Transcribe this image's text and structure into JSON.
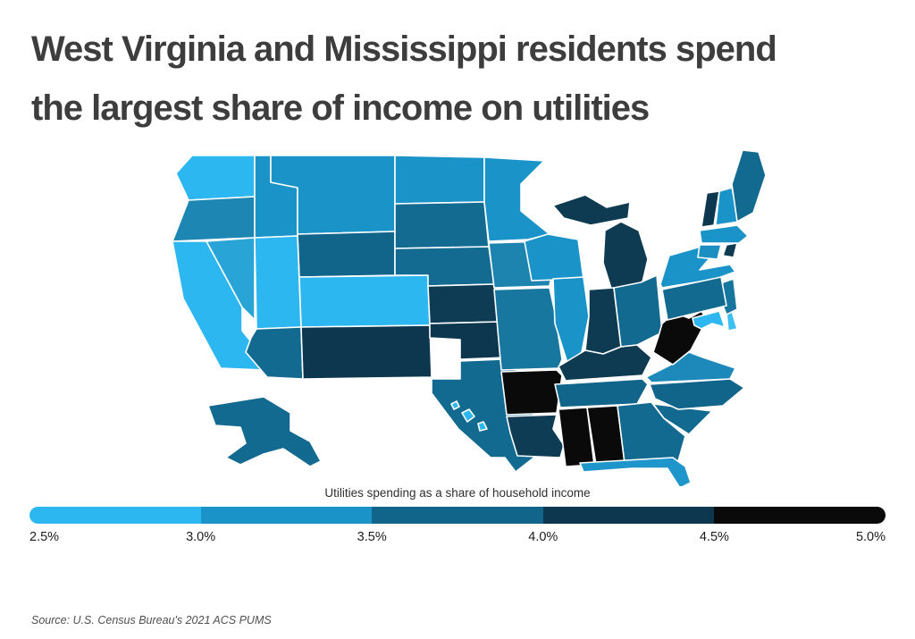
{
  "title": {
    "line1": "West Virginia and Mississippi residents spend",
    "line2": "the largest share of income on utilities"
  },
  "source": "Source:  U.S. Census Bureau's 2021 ACS PUMS",
  "chart_data": {
    "type": "choropleth_map",
    "title": "West Virginia and Mississippi residents spend the largest share of income on utilities",
    "legend_title": "Utilities spending as a share of household income",
    "unit": "percent of household income",
    "legend": {
      "position": "bottom",
      "tick_labels": [
        "2.5%",
        "3.0%",
        "3.5%",
        "4.0%",
        "4.5%",
        "5.0%"
      ],
      "segments": [
        {
          "range": "2.5–3.0%",
          "color": "#2db7f0"
        },
        {
          "range": "3.0–3.5%",
          "color": "#1a93c8"
        },
        {
          "range": "3.5–4.0%",
          "color": "#11648a"
        },
        {
          "range": "4.0–4.5%",
          "color": "#0d374e"
        },
        {
          "range": "4.5–5.0%",
          "color": "#0a0a0b"
        }
      ]
    },
    "map_border_color": "#ffffff",
    "states": [
      {
        "abbr": "WA",
        "name": "Washington",
        "range": "2.5–3.0%",
        "fill": "#2db7f0"
      },
      {
        "abbr": "OR",
        "name": "Oregon",
        "range": "3.0–3.5%",
        "fill": "#1e86b2"
      },
      {
        "abbr": "CA",
        "name": "California",
        "range": "2.5–3.0%",
        "fill": "#2db7f0"
      },
      {
        "abbr": "NV",
        "name": "Nevada",
        "range": "3.0–3.5%",
        "fill": "#28a4d7"
      },
      {
        "abbr": "ID",
        "name": "Idaho",
        "range": "3.0–3.5%",
        "fill": "#1a93c8"
      },
      {
        "abbr": "MT",
        "name": "Montana",
        "range": "3.0–3.5%",
        "fill": "#1a93c8"
      },
      {
        "abbr": "WY",
        "name": "Wyoming",
        "range": "3.5–4.0%",
        "fill": "#11648a"
      },
      {
        "abbr": "UT",
        "name": "Utah",
        "range": "2.5–3.0%",
        "fill": "#2db7f0"
      },
      {
        "abbr": "CO",
        "name": "Colorado",
        "range": "2.5–3.0%",
        "fill": "#2db7f0"
      },
      {
        "abbr": "AZ",
        "name": "Arizona",
        "range": "3.5–4.0%",
        "fill": "#136a90"
      },
      {
        "abbr": "NM",
        "name": "New Mexico",
        "range": "4.0–4.5%",
        "fill": "#0d374e"
      },
      {
        "abbr": "ND",
        "name": "North Dakota",
        "range": "3.0–3.5%",
        "fill": "#1a93c8"
      },
      {
        "abbr": "SD",
        "name": "South Dakota",
        "range": "3.5–4.0%",
        "fill": "#146b92"
      },
      {
        "abbr": "NE",
        "name": "Nebraska",
        "range": "3.5–4.0%",
        "fill": "#146b92"
      },
      {
        "abbr": "KS",
        "name": "Kansas",
        "range": "4.0–4.5%",
        "fill": "#0e3c55"
      },
      {
        "abbr": "OK",
        "name": "Oklahoma",
        "range": "4.0–4.5%",
        "fill": "#0d374e"
      },
      {
        "abbr": "TX",
        "name": "Texas",
        "range": "3.5–4.0%",
        "fill": "#136a90"
      },
      {
        "abbr": "MN",
        "name": "Minnesota",
        "range": "3.0–3.5%",
        "fill": "#1a93c8"
      },
      {
        "abbr": "IA",
        "name": "Iowa",
        "range": "3.5–4.0%",
        "fill": "#1d84b0"
      },
      {
        "abbr": "MO",
        "name": "Missouri",
        "range": "3.5–4.0%",
        "fill": "#18779f"
      },
      {
        "abbr": "AR",
        "name": "Arkansas",
        "range": "4.5–5.0%",
        "fill": "#0a0a0b"
      },
      {
        "abbr": "LA",
        "name": "Louisiana",
        "range": "4.0–4.5%",
        "fill": "#0e3c55"
      },
      {
        "abbr": "WI",
        "name": "Wisconsin",
        "range": "3.0–3.5%",
        "fill": "#1a93c8"
      },
      {
        "abbr": "IL",
        "name": "Illinois",
        "range": "3.0–3.5%",
        "fill": "#1a93c8"
      },
      {
        "abbr": "MI",
        "name": "Michigan",
        "range": "4.0–4.5%",
        "fill": "#0e3a52"
      },
      {
        "abbr": "IN",
        "name": "Indiana",
        "range": "4.0–4.5%",
        "fill": "#0e3a52"
      },
      {
        "abbr": "OH",
        "name": "Ohio",
        "range": "3.5–4.0%",
        "fill": "#136a90"
      },
      {
        "abbr": "KY",
        "name": "Kentucky",
        "range": "4.0–4.5%",
        "fill": "#0e3a52"
      },
      {
        "abbr": "TN",
        "name": "Tennessee",
        "range": "3.5–4.0%",
        "fill": "#11648a"
      },
      {
        "abbr": "MS",
        "name": "Mississippi",
        "range": "4.5–5.0%",
        "fill": "#0a0a0b"
      },
      {
        "abbr": "AL",
        "name": "Alabama",
        "range": "4.5–5.0%",
        "fill": "#0a0a0b"
      },
      {
        "abbr": "GA",
        "name": "Georgia",
        "range": "3.5–4.0%",
        "fill": "#136a90"
      },
      {
        "abbr": "FL",
        "name": "Florida",
        "range": "3.0–3.5%",
        "fill": "#1e95cb"
      },
      {
        "abbr": "SC",
        "name": "South Carolina",
        "range": "3.5–4.0%",
        "fill": "#136a90"
      },
      {
        "abbr": "NC",
        "name": "North Carolina",
        "range": "3.5–4.0%",
        "fill": "#11648a"
      },
      {
        "abbr": "VA",
        "name": "Virginia",
        "range": "3.0–3.5%",
        "fill": "#1d89bb"
      },
      {
        "abbr": "WV",
        "name": "West Virginia",
        "range": "4.5–5.0%",
        "fill": "#0a0a0b"
      },
      {
        "abbr": "MD",
        "name": "Maryland",
        "range": "2.5–3.0%",
        "fill": "#2db7f0"
      },
      {
        "abbr": "DE",
        "name": "Delaware",
        "range": "2.5–3.0%",
        "fill": "#3cc0f2"
      },
      {
        "abbr": "NJ",
        "name": "New Jersey",
        "range": "3.5–4.0%",
        "fill": "#17769e"
      },
      {
        "abbr": "NY",
        "name": "New York",
        "range": "3.0–3.5%",
        "fill": "#1a93c8"
      },
      {
        "abbr": "CT",
        "name": "Connecticut",
        "range": "3.0–3.5%",
        "fill": "#1b8fc0"
      },
      {
        "abbr": "RI",
        "name": "Rhode Island",
        "range": "4.0–4.5%",
        "fill": "#0e3a52"
      },
      {
        "abbr": "MA",
        "name": "Massachusetts",
        "range": "3.0–3.5%",
        "fill": "#1a93c8"
      },
      {
        "abbr": "VT",
        "name": "Vermont",
        "range": "4.0–4.5%",
        "fill": "#0d374e"
      },
      {
        "abbr": "NH",
        "name": "New Hampshire",
        "range": "3.0–3.5%",
        "fill": "#1a93c8"
      },
      {
        "abbr": "ME",
        "name": "Maine",
        "range": "3.5–4.0%",
        "fill": "#136a90"
      },
      {
        "abbr": "PA",
        "name": "Pennsylvania",
        "range": "3.5–4.0%",
        "fill": "#136a90"
      },
      {
        "abbr": "AK",
        "name": "Alaska",
        "range": "3.5–4.0%",
        "fill": "#136a90"
      },
      {
        "abbr": "HI",
        "name": "Hawaii",
        "range": "2.5–3.0%",
        "fill": "#2db7f0"
      }
    ]
  }
}
